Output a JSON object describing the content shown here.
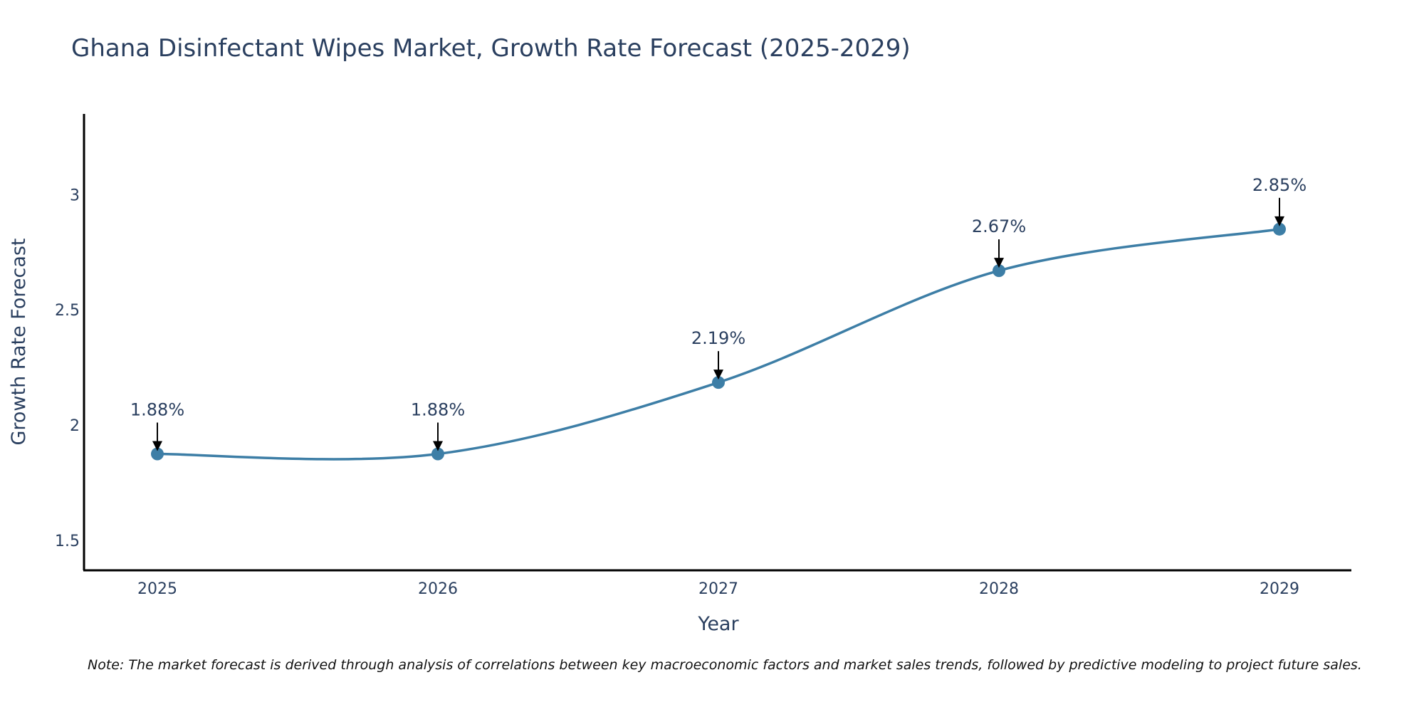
{
  "chart_data": {
    "type": "line",
    "title": "Ghana Disinfectant Wipes Market, Growth Rate Forecast (2025-2029)",
    "xlabel": "Year",
    "ylabel": "Growth Rate Forecast",
    "categories": [
      "2025",
      "2026",
      "2027",
      "2028",
      "2029"
    ],
    "values": [
      1.875,
      1.875,
      2.185,
      2.67,
      2.85
    ],
    "data_labels": [
      "1.88%",
      "1.88%",
      "2.19%",
      "2.67%",
      "2.85%"
    ],
    "yticks": [
      1.5,
      2,
      2.5,
      3
    ],
    "ytick_labels": [
      "1.5",
      "2",
      "2.5",
      "3"
    ],
    "ylim": [
      1.37,
      3.35
    ],
    "line_shape": "spline",
    "grid": false,
    "series_color": "#3d7ea6",
    "marker_color": "#3d7ea6",
    "arrow_color": "#000000",
    "note": "Note: The market forecast is derived through analysis of correlations between key macroeconomic factors and market sales trends, followed by predictive modeling to project future sales."
  }
}
